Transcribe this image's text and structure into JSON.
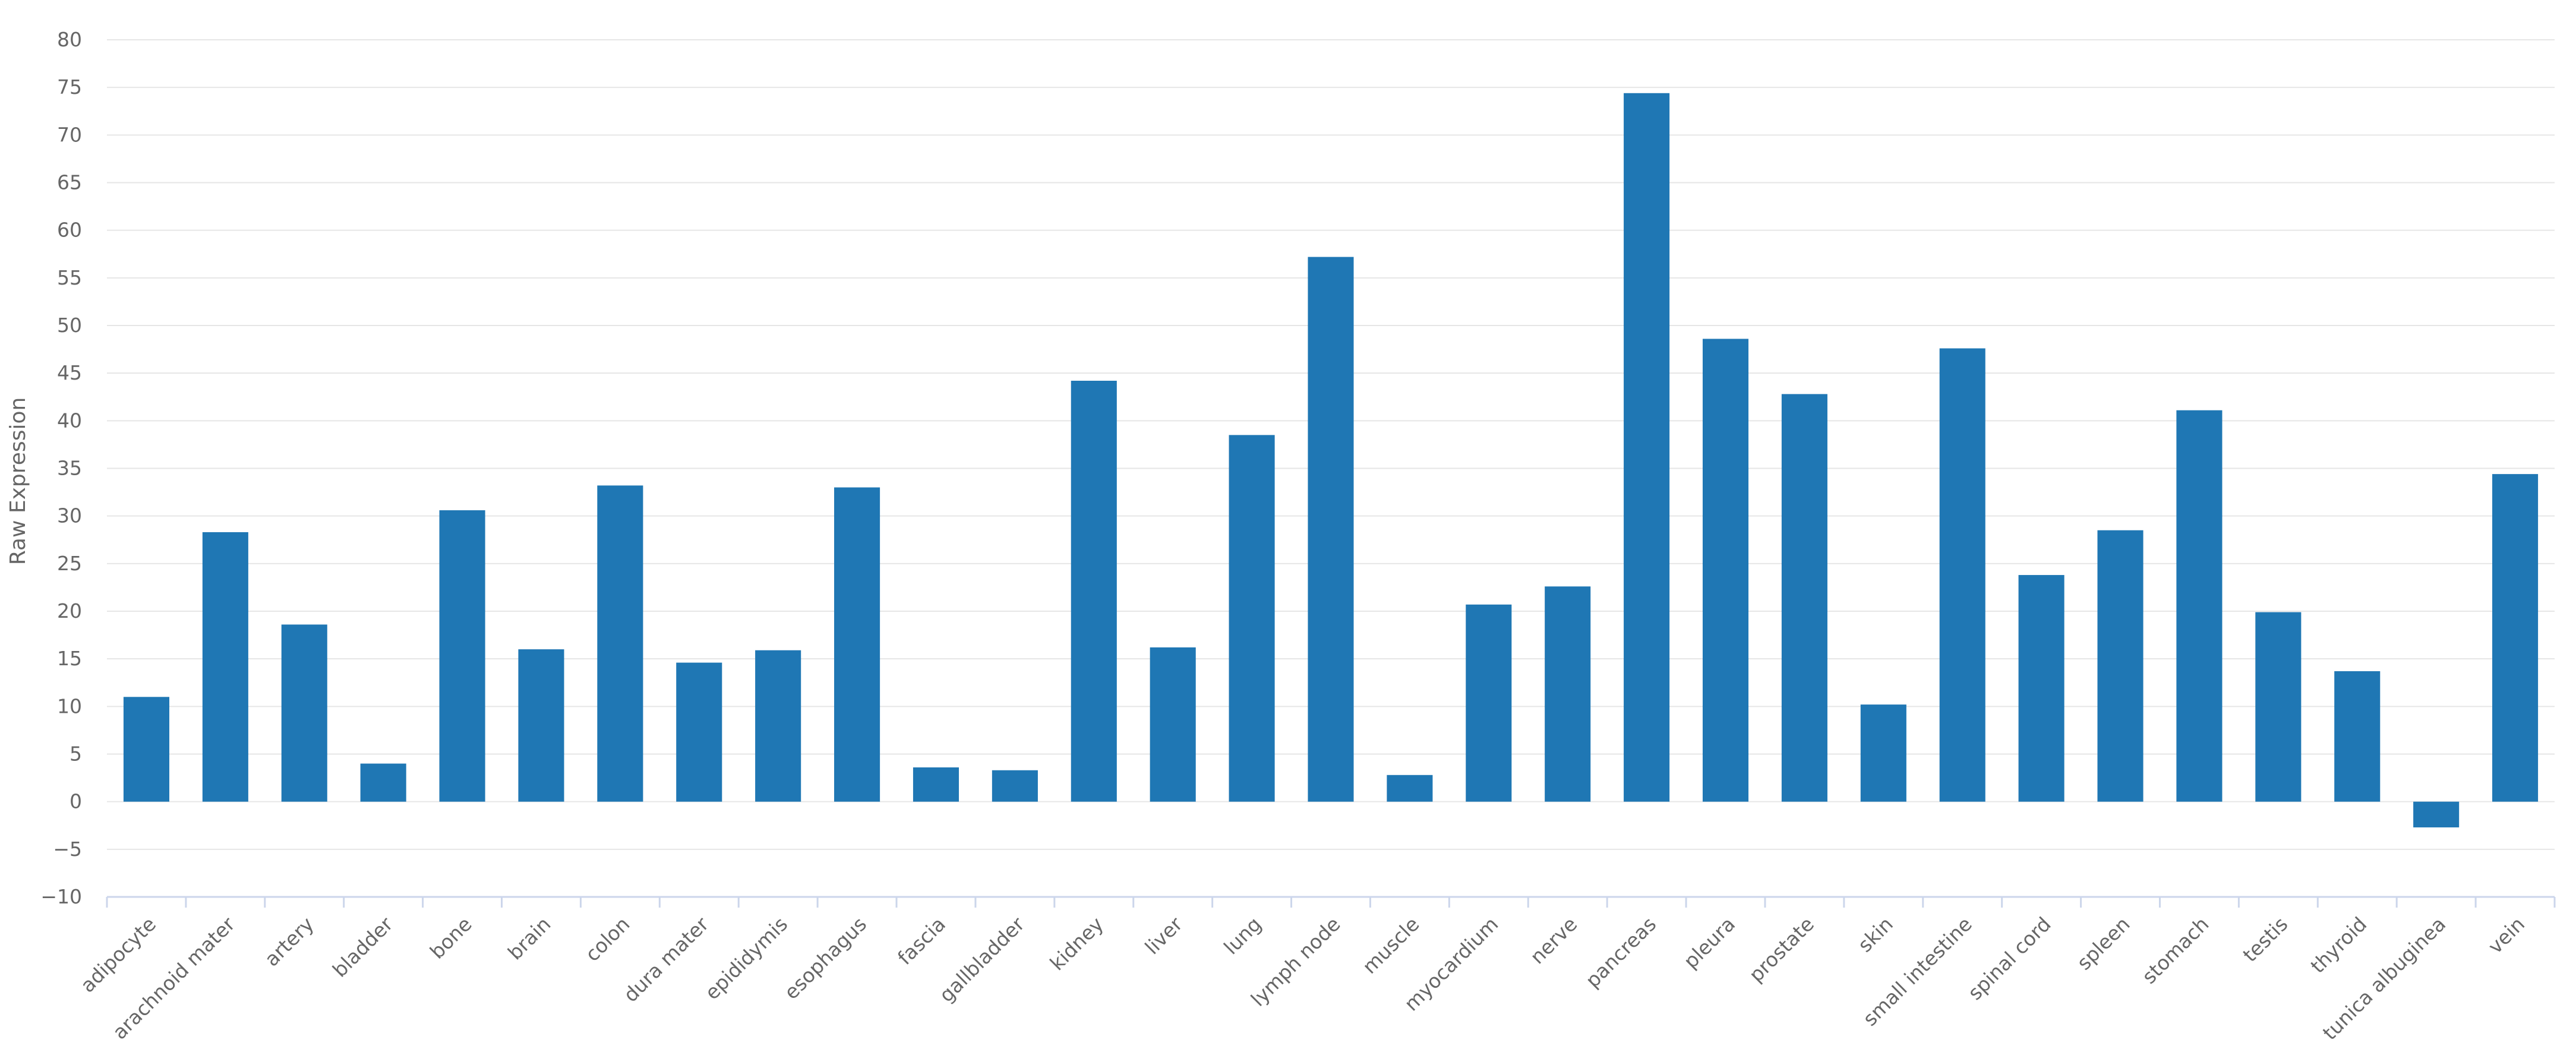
{
  "chart_data": {
    "type": "bar",
    "title": "",
    "xlabel": "",
    "ylabel": "Raw Expression",
    "ylim": [
      -10,
      80
    ],
    "yticks": [
      -10,
      -5,
      0,
      5,
      10,
      15,
      20,
      25,
      30,
      35,
      40,
      45,
      50,
      55,
      60,
      65,
      70,
      75,
      80
    ],
    "grid": true,
    "legend": "none",
    "color": "#1f77b4",
    "categories": [
      "adipocyte",
      "arachnoid mater",
      "artery",
      "bladder",
      "bone",
      "brain",
      "colon",
      "dura mater",
      "epididymis",
      "esophagus",
      "fascia",
      "gallbladder",
      "kidney",
      "liver",
      "lung",
      "lymph node",
      "muscle",
      "myocardium",
      "nerve",
      "pancreas",
      "pleura",
      "prostate",
      "skin",
      "small intestine",
      "spinal cord",
      "spleen",
      "stomach",
      "testis",
      "thyroid",
      "tunica albuginea",
      "vein"
    ],
    "values": [
      11,
      28.3,
      18.6,
      4,
      30.6,
      16,
      33.2,
      14.6,
      15.9,
      33,
      3.6,
      3.3,
      44.2,
      16.2,
      38.5,
      57.2,
      2.8,
      20.7,
      22.6,
      74.4,
      48.6,
      42.8,
      10.2,
      47.6,
      23.8,
      28.5,
      41.1,
      19.9,
      13.7,
      -2.7,
      34.4
    ]
  }
}
